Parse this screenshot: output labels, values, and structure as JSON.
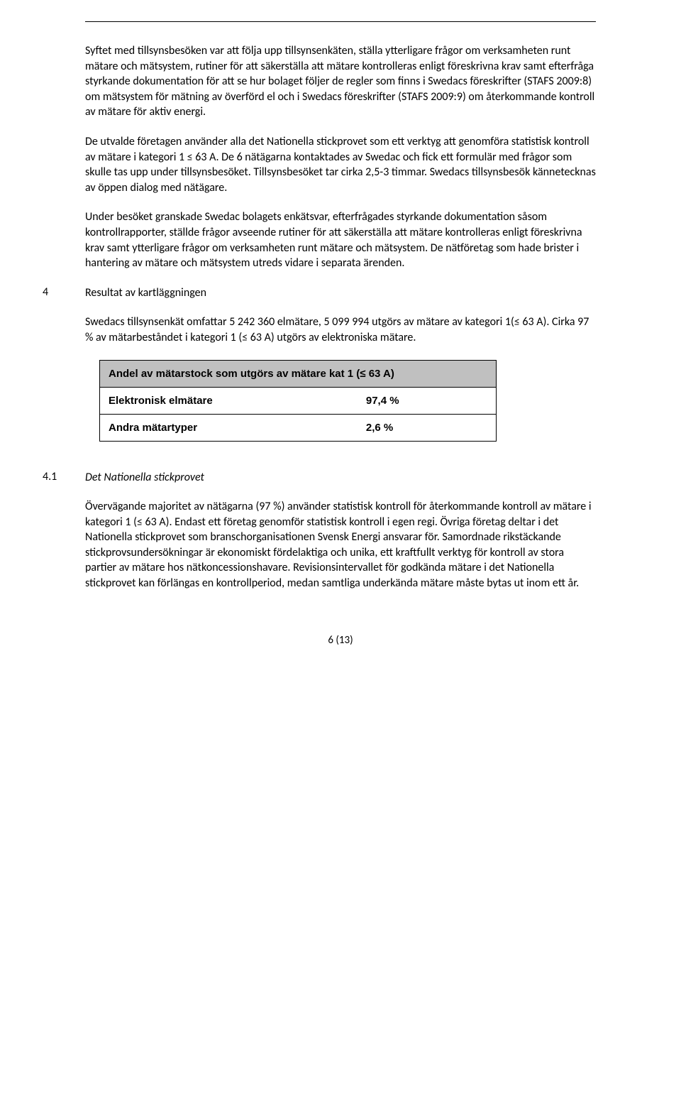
{
  "paragraphs": {
    "p1": "Syftet med tillsynsbesöken var att följa upp tillsynsenkäten, ställa ytterligare frågor om verksamheten runt mätare och mätsystem, rutiner för att säkerställa att mätare kontrolleras enligt föreskrivna krav samt efterfråga styrkande dokumentation för att se hur bolaget följer de regler som finns i Swedacs föreskrifter (STAFS 2009:8) om mätsystem för mätning av överförd el och i Swedacs föreskrifter (STAFS 2009:9) om återkommande kontroll av mätare för aktiv energi.",
    "p2": "De utvalde företagen använder alla det Nationella stickprovet som ett verktyg att genomföra statistisk kontroll av mätare i kategori 1 ≤ 63 A. De 6 nätägarna kontaktades av Swedac och fick ett formulär med frågor som skulle tas upp under tillsynsbesöket. Tillsynsbesöket tar cirka 2,5-3 timmar. Swedacs tillsynsbesök kännetecknas av öppen dialog med nätägare.",
    "p3": "Under besöket granskade Swedac bolagets enkätsvar, efterfrågades styrkande dokumentation såsom kontrollrapporter, ställde frågor avseende rutiner för att säkerställa att mätare kontrolleras enligt föreskrivna krav samt ytterligare frågor om verksamheten runt mätare och mätsystem. De nätföretag som hade brister i hantering av mätare och mätsystem utreds vidare i separata ärenden.",
    "p4": "Swedacs tillsynsenkät omfattar 5 242 360 elmätare, 5 099 994 utgörs av mätare av kategori 1(≤ 63 A). Cirka 97 % av mätarbeståndet i kategori 1 (≤ 63 A) utgörs av elektroniska mätare.",
    "p5": "Övervägande majoritet av nätägarna (97 %) använder statistisk kontroll för återkommande kontroll av mätare i kategori 1 (≤ 63 A). Endast ett företag genomför statistisk kontroll i egen regi. Övriga företag deltar i det Nationella stickprovet som branschorganisationen Svensk Energi ansvarar för. Samordnade rikstäckande stickprovsundersökningar är ekonomiskt fördelaktiga och unika, ett kraftfullt verktyg för kontroll av stora partier av mätare hos nätkoncessionshavare. Revisionsintervallet för godkända mätare i det Nationella stickprovet kan förlängas en kontrollperiod, medan samtliga underkända mätare måste bytas ut inom ett år."
  },
  "sections": {
    "s4": {
      "num": "4",
      "title": "Resultat av kartläggningen"
    },
    "s41": {
      "num": "4.1",
      "title": "Det Nationella stickprovet"
    }
  },
  "table": {
    "header": "Andel av mätarstock som utgörs av mätare kat 1 (≤ 63 A)",
    "rows": [
      {
        "label": "Elektronisk elmätare",
        "value": "97,4 %"
      },
      {
        "label": "Andra mätartyper",
        "value": "2,6 %"
      }
    ]
  },
  "footer": {
    "pagenum": "6 (13)"
  }
}
